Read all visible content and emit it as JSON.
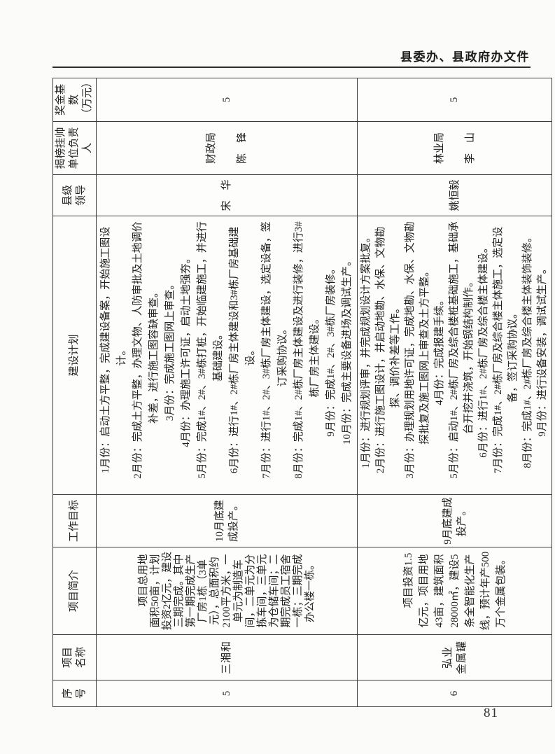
{
  "page": {
    "header_title": "县委办、县政府办文件",
    "page_number": "81"
  },
  "table": {
    "headers": [
      "序\n号",
      "项目\n名称",
      "项目简介",
      "工作目标",
      "建设计划",
      "县级\n领导",
      "揭榜挂帅\n单位负责人",
      "奖金基数\n（万元）"
    ],
    "rows": [
      {
        "serial": "5",
        "name": "三湘和",
        "intro": "项目总用地面积50亩，计划投资2亿元，建设三期完成。其中第一期完成生产厂房1栋（3单元），总面积约2100平方米，一单元为制造车间，二单元为分拣车间，三单元为仓储车间；二期完成员工宿舍一栋；三期完成办公楼一栋。",
        "goal": "10月底建成投产。",
        "plan": [
          "1月份：启动土方平整，完成建设备案，开始施工图设计。",
          "2月份：完成土方平整，办理文物、人防审批及土地调价补差，进行施工图容缺审查。",
          "3月份：完成施工图网上审查。",
          "4月份：办理施工许可证，启动土地强夯。",
          "5月份：完成1#、2#、3#栋打桩，开始临建施工，并进行基础建设。",
          "6月份：进行1#、2#栋厂房主体建设和3#栋厂房基础建设。",
          "7月份：进行1#、2#、3#栋厂房主体建设，选定设备，签订采购协议。",
          "8月份：完成1#、2#栋厂房主体建设及进行装修，进行3#栋厂房主体建设。",
          "9月份：完成1#、2#、3#栋厂房装修。",
          "10月份：完成主要设备进场及调试生产。"
        ],
        "leader": "宋　华",
        "unit": "财政局",
        "person": "陈　锋",
        "bonus": "5"
      },
      {
        "serial": "6",
        "name": "弘业\n金属罐",
        "intro": "项目投资1.5亿元，项目用地43亩，建筑面积28000㎡，建设5条全智能化生产线，预计年产500万个金属包装。",
        "goal": "9月底建成投产。",
        "plan": [
          "1月份：进行规划评审，并完成规划设计方案批复。",
          "2月份：进行施工图设计，并启动地勘、水保、文物勘探、调价补差等工作。",
          "3月份：办理规划用地许可证，完成地勘、水保、文物勘探批复及施工图网上审查及土方平整。",
          "4月份：完成报建手续。",
          "5月份：启动1#、2#栋厂房及综合楼桩基础施工，基础承台开挖并浇筑，开始钢结构制作。",
          "6月份：进行1#、2#栋厂房及综合楼主体建设。",
          "7月份：完成1#、2#栋厂房及综合楼主体施工，选定设备，签订采购协议。",
          "8月份：完成1#、2#栋厂房及综合楼主体装饰装修。",
          "9月份：进行设备安装，调试试生产。"
        ],
        "leader": "姚恒毅",
        "unit": "林业局",
        "person": "李　山",
        "bonus": "5"
      }
    ]
  }
}
